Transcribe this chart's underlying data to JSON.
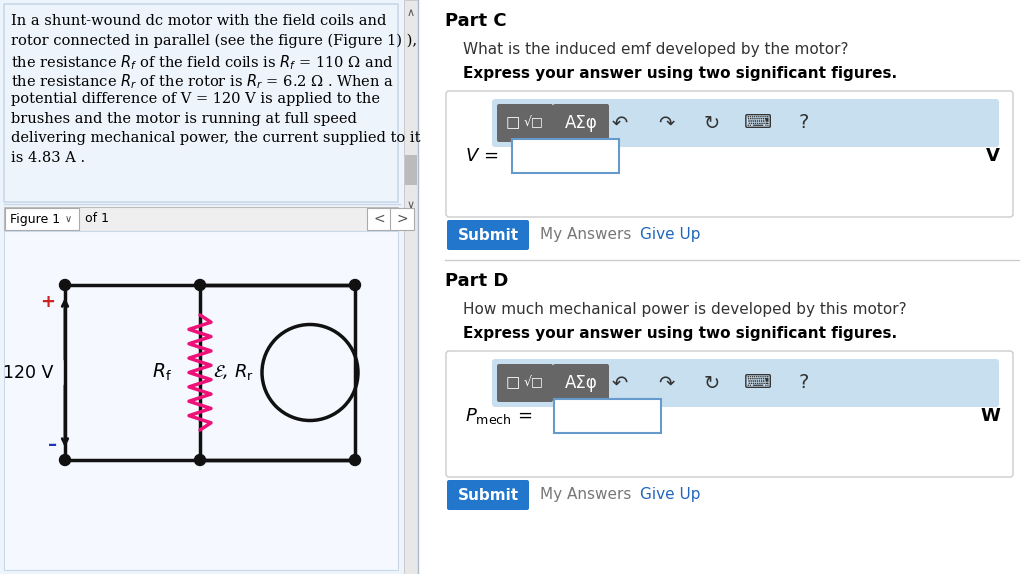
{
  "bg_color": "#ffffff",
  "left_panel_bg": "#eef4fb",
  "left_panel_border": "#c8d8e8",
  "figure_panel_bg": "#f5f9ff",
  "figure_label": "Figure 1",
  "figure_label_of": "of 1",
  "part_c_title": "Part C",
  "part_c_question": "What is the induced emf developed by the motor?",
  "part_c_bold": "Express your answer using two significant figures.",
  "part_d_title": "Part D",
  "part_d_question": "How much mechanical power is developed by this motor?",
  "part_d_bold": "Express your answer using two significant figures.",
  "submit_btn_color": "#2277cc",
  "submit_btn_text": "Submit",
  "give_up_text": "Give Up",
  "my_answers_text": "My Answers",
  "toolbar_bg": "#c8dff0",
  "input_box_border": "#6699cc",
  "v_unit": "V",
  "p_unit": "W",
  "resistor_color": "#ee1177",
  "wire_color": "#111111",
  "voltage_arrow_color": "#cc0000",
  "minus_color": "#2233bb",
  "plus_color": "#cc2222"
}
